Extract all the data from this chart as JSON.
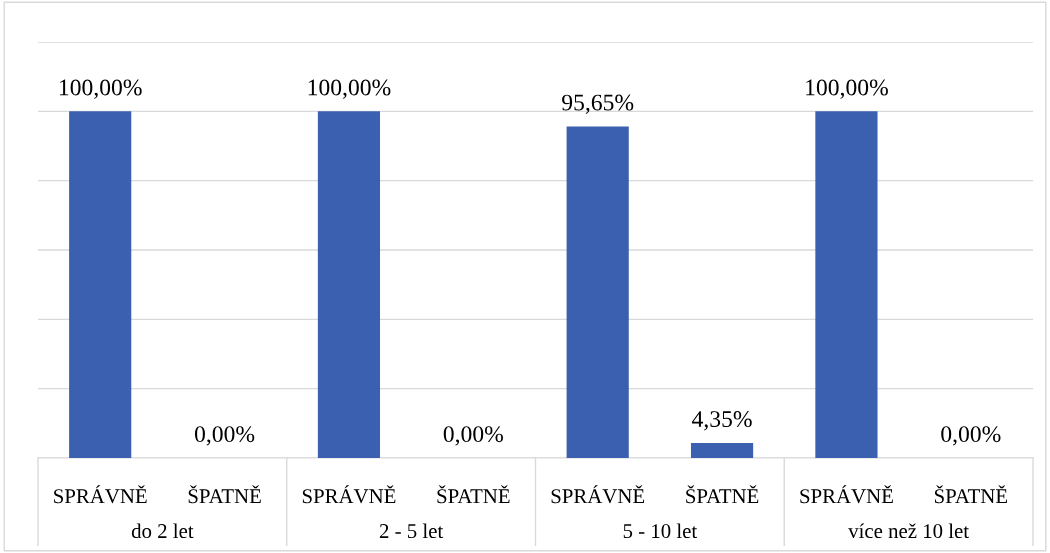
{
  "chart_data": {
    "type": "bar",
    "categories": [
      "SPRÁVNĚ",
      "ŠPATNĚ",
      "SPRÁVNĚ",
      "ŠPATNĚ",
      "SPRÁVNĚ",
      "ŠPATNĚ",
      "SPRÁVNĚ",
      "ŠPATNĚ"
    ],
    "values": [
      100,
      0,
      100,
      0,
      95.65,
      4.35,
      100,
      0
    ],
    "value_labels": [
      "100,00%",
      "0,00%",
      "100,00%",
      "0,00%",
      "95,65%",
      "4,35%",
      "100,00%",
      "0,00%"
    ],
    "color": "#3c60b0",
    "annotations": [
      "do 2 let",
      "2 - 5 let",
      "5 - 10 let",
      "více než 10 let"
    ],
    "ylim": [
      0,
      120
    ],
    "yticks": [
      {
        "value": 0,
        "label": null
      },
      {
        "value": 20,
        "label": null
      },
      {
        "value": 40,
        "label": null
      },
      {
        "value": 60,
        "label": null
      },
      {
        "value": 80,
        "label": null
      },
      {
        "value": 100,
        "label": null
      },
      {
        "value": 120,
        "label": null
      }
    ],
    "tick_labels": "x",
    "grid": "y"
  }
}
